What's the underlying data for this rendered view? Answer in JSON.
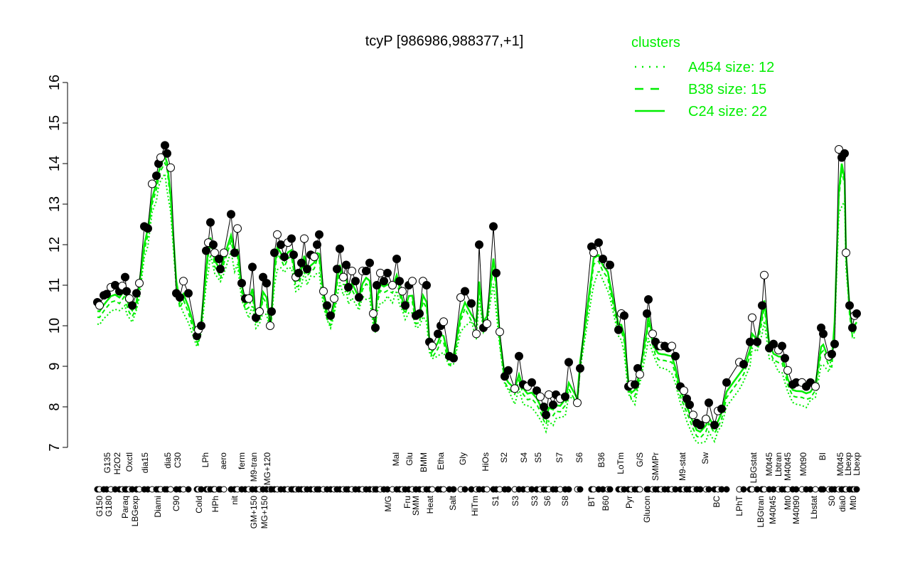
{
  "chart_data": {
    "type": "line",
    "title": "tcyP [986986,988377,+1]",
    "xlabel": "",
    "ylabel": "",
    "ylim": [
      7,
      16
    ],
    "xlim": [
      -3,
      1115
    ],
    "yticks": [
      7,
      8,
      9,
      10,
      11,
      12,
      13,
      14,
      15,
      16
    ],
    "colors": {
      "cluster": "#00ee00",
      "points": "#000000"
    },
    "legend": {
      "title": "clusters",
      "placement": "top-right",
      "entries": [
        {
          "label": "A454 size: 12",
          "style": "dotted"
        },
        {
          "label": "B38 size: 15",
          "style": "dashed"
        },
        {
          "label": "C24 size: 22",
          "style": "solid"
        }
      ]
    },
    "points": [
      [
        37,
        10.58
      ],
      [
        40,
        10.5
      ],
      [
        46,
        10.75
      ],
      [
        50,
        10.78
      ],
      [
        56,
        10.95
      ],
      [
        62,
        11.0
      ],
      [
        68,
        10.85
      ],
      [
        72,
        10.98
      ],
      [
        76,
        11.2
      ],
      [
        78,
        10.85
      ],
      [
        82,
        10.67
      ],
      [
        86,
        10.5
      ],
      [
        92,
        10.8
      ],
      [
        96,
        11.05
      ],
      [
        103,
        12.45
      ],
      [
        108,
        12.4
      ],
      [
        114,
        13.5
      ],
      [
        120,
        13.7
      ],
      [
        123,
        14.0
      ],
      [
        126,
        14.15
      ],
      [
        132,
        14.45
      ],
      [
        135,
        14.25
      ],
      [
        140,
        13.9
      ],
      [
        148,
        10.8
      ],
      [
        153,
        10.7
      ],
      [
        158,
        11.1
      ],
      [
        165,
        10.8
      ],
      [
        177,
        9.75
      ],
      [
        179,
        9.9
      ],
      [
        183,
        10.0
      ],
      [
        190,
        11.85
      ],
      [
        193,
        12.05
      ],
      [
        196,
        12.55
      ],
      [
        200,
        12.0
      ],
      [
        202,
        11.8
      ],
      [
        208,
        11.65
      ],
      [
        210,
        11.4
      ],
      [
        215,
        11.8
      ],
      [
        225,
        12.75
      ],
      [
        230,
        11.8
      ],
      [
        234,
        12.4
      ],
      [
        240,
        11.05
      ],
      [
        245,
        10.67
      ],
      [
        250,
        10.67
      ],
      [
        255,
        11.45
      ],
      [
        260,
        10.2
      ],
      [
        265,
        10.35
      ],
      [
        270,
        11.2
      ],
      [
        275,
        11.05
      ],
      [
        280,
        10.0
      ],
      [
        282,
        10.35
      ],
      [
        286,
        11.8
      ],
      [
        290,
        12.25
      ],
      [
        295,
        12.0
      ],
      [
        300,
        11.7
      ],
      [
        305,
        12.05
      ],
      [
        310,
        12.15
      ],
      [
        313,
        11.75
      ],
      [
        316,
        11.2
      ],
      [
        320,
        11.3
      ],
      [
        324,
        11.55
      ],
      [
        328,
        12.15
      ],
      [
        332,
        11.4
      ],
      [
        337,
        11.75
      ],
      [
        342,
        11.7
      ],
      [
        346,
        12.0
      ],
      [
        349,
        12.25
      ],
      [
        355,
        10.85
      ],
      [
        360,
        10.5
      ],
      [
        365,
        10.25
      ],
      [
        370,
        10.67
      ],
      [
        374,
        11.4
      ],
      [
        378,
        11.9
      ],
      [
        383,
        11.2
      ],
      [
        387,
        11.5
      ],
      [
        390,
        10.95
      ],
      [
        395,
        11.35
      ],
      [
        400,
        11.1
      ],
      [
        405,
        10.7
      ],
      [
        410,
        11.35
      ],
      [
        415,
        11.35
      ],
      [
        420,
        11.55
      ],
      [
        425,
        10.3
      ],
      [
        428,
        9.95
      ],
      [
        430,
        11.0
      ],
      [
        435,
        11.3
      ],
      [
        440,
        11.1
      ],
      [
        445,
        11.3
      ],
      [
        452,
        11.0
      ],
      [
        458,
        11.65
      ],
      [
        462,
        11.1
      ],
      [
        466,
        10.85
      ],
      [
        470,
        10.5
      ],
      [
        475,
        11.0
      ],
      [
        480,
        11.1
      ],
      [
        485,
        10.25
      ],
      [
        490,
        10.3
      ],
      [
        495,
        11.1
      ],
      [
        500,
        11.0
      ],
      [
        504,
        9.6
      ],
      [
        508,
        9.5
      ],
      [
        516,
        9.8
      ],
      [
        520,
        10.0
      ],
      [
        524,
        10.1
      ],
      [
        532,
        9.25
      ],
      [
        538,
        9.2
      ],
      [
        548,
        10.7
      ],
      [
        554,
        10.85
      ],
      [
        563,
        10.55
      ],
      [
        570,
        9.8
      ],
      [
        574,
        12.0
      ],
      [
        580,
        9.95
      ],
      [
        585,
        10.05
      ],
      [
        594,
        12.45
      ],
      [
        598,
        11.3
      ],
      [
        603,
        9.85
      ],
      [
        610,
        8.75
      ],
      [
        615,
        8.9
      ],
      [
        624,
        8.45
      ],
      [
        630,
        9.25
      ],
      [
        636,
        8.55
      ],
      [
        642,
        8.5
      ],
      [
        648,
        8.6
      ],
      [
        655,
        8.4
      ],
      [
        660,
        8.25
      ],
      [
        665,
        8.0
      ],
      [
        668,
        7.8
      ],
      [
        672,
        8.3
      ],
      [
        678,
        8.05
      ],
      [
        682,
        8.3
      ],
      [
        688,
        8.2
      ],
      [
        695,
        8.25
      ],
      [
        700,
        9.1
      ],
      [
        712,
        8.1
      ],
      [
        716,
        8.95
      ],
      [
        732,
        11.95
      ],
      [
        735,
        11.8
      ],
      [
        742,
        12.05
      ],
      [
        748,
        11.65
      ],
      [
        755,
        11.5
      ],
      [
        758,
        11.5
      ],
      [
        770,
        9.9
      ],
      [
        774,
        10.3
      ],
      [
        778,
        10.25
      ],
      [
        784,
        8.5
      ],
      [
        788,
        8.55
      ],
      [
        793,
        8.55
      ],
      [
        797,
        8.95
      ],
      [
        800,
        8.8
      ],
      [
        810,
        10.3
      ],
      [
        812,
        10.65
      ],
      [
        818,
        9.8
      ],
      [
        822,
        9.6
      ],
      [
        826,
        9.5
      ],
      [
        830,
        9.5
      ],
      [
        835,
        9.5
      ],
      [
        840,
        9.45
      ],
      [
        845,
        9.5
      ],
      [
        850,
        9.25
      ],
      [
        857,
        8.5
      ],
      [
        862,
        8.4
      ],
      [
        866,
        8.2
      ],
      [
        870,
        8.05
      ],
      [
        875,
        7.8
      ],
      [
        880,
        7.6
      ],
      [
        885,
        7.55
      ],
      [
        893,
        7.7
      ],
      [
        897,
        8.1
      ],
      [
        905,
        7.55
      ],
      [
        910,
        7.9
      ],
      [
        915,
        7.95
      ],
      [
        922,
        8.6
      ],
      [
        940,
        9.1
      ],
      [
        946,
        9.05
      ],
      [
        955,
        9.6
      ],
      [
        958,
        10.2
      ],
      [
        965,
        9.6
      ],
      [
        972,
        10.5
      ],
      [
        975,
        11.25
      ],
      [
        982,
        9.45
      ],
      [
        988,
        9.55
      ],
      [
        995,
        9.4
      ],
      [
        1000,
        9.5
      ],
      [
        1004,
        9.2
      ],
      [
        1008,
        8.9
      ],
      [
        1015,
        8.55
      ],
      [
        1020,
        8.6
      ],
      [
        1028,
        8.6
      ],
      [
        1034,
        8.5
      ],
      [
        1040,
        8.6
      ],
      [
        1047,
        8.5
      ],
      [
        1055,
        9.95
      ],
      [
        1058,
        9.8
      ],
      [
        1066,
        9.25
      ],
      [
        1070,
        9.3
      ],
      [
        1074,
        9.55
      ],
      [
        1080,
        14.35
      ],
      [
        1084,
        14.15
      ],
      [
        1088,
        14.25
      ],
      [
        1090,
        11.8
      ],
      [
        1095,
        10.5
      ],
      [
        1099,
        9.95
      ],
      [
        1102,
        10.25
      ],
      [
        1105,
        10.3
      ]
    ],
    "xlabels_lower": [
      [
        "G150",
        40
      ],
      [
        "G180",
        53
      ],
      [
        "Paraq",
        76
      ],
      [
        "LBGexp",
        90
      ],
      [
        "Diami",
        122
      ],
      [
        "C90",
        148
      ],
      [
        "Cold",
        180
      ],
      [
        "HPh",
        203
      ],
      [
        "nit",
        230
      ],
      [
        "GM+150",
        257
      ],
      [
        "MG+150",
        272
      ],
      [
        "M/G",
        446
      ],
      [
        "Fru",
        473
      ],
      [
        "SMM",
        485
      ],
      [
        "Heat",
        505
      ],
      [
        "Salt",
        537
      ],
      [
        "HiTm",
        568
      ],
      [
        "S1",
        597
      ],
      [
        "S3",
        625
      ],
      [
        "S3",
        652
      ],
      [
        "S6",
        670
      ],
      [
        "S8",
        695
      ],
      [
        "BT",
        732
      ],
      [
        "B60",
        752
      ],
      [
        "Pyr",
        785
      ],
      [
        "Glucon",
        810
      ],
      [
        "BC",
        908
      ],
      [
        "LPhT",
        940
      ],
      [
        "LBGtran",
        970
      ],
      [
        "M40t45",
        987
      ],
      [
        "Mt0",
        1008
      ],
      [
        "M40t90",
        1020
      ],
      [
        "Lbstat",
        1045
      ],
      [
        "S0",
        1070
      ],
      [
        "dia0",
        1085
      ],
      [
        "Mt0",
        1100
      ]
    ],
    "xlabels_upper": [
      [
        "G135",
        51
      ],
      [
        "H2O2",
        65
      ],
      [
        "Oxctl",
        82
      ],
      [
        "dia15",
        104
      ],
      [
        "dia5",
        136
      ],
      [
        "C30",
        150
      ],
      [
        "LPh",
        189
      ],
      [
        "aero",
        214
      ],
      [
        "ferm",
        240
      ],
      [
        "M9-tran",
        257
      ],
      [
        "MG+120",
        276
      ],
      [
        "Mal",
        457
      ],
      [
        "Glu",
        476
      ],
      [
        "BMM",
        496
      ],
      [
        "Etha",
        520
      ],
      [
        "Gly",
        551
      ],
      [
        "HiOs",
        583
      ],
      [
        "S2",
        609
      ],
      [
        "S4",
        637
      ],
      [
        "S5",
        657
      ],
      [
        "S7",
        687
      ],
      [
        "S6",
        715
      ],
      [
        "B36",
        746
      ],
      [
        "LoTm",
        773
      ],
      [
        "G/S",
        800
      ],
      [
        "SMMPr",
        822
      ],
      [
        "M9-stat",
        860
      ],
      [
        "Sw",
        892
      ],
      [
        "LBGstat",
        960
      ],
      [
        "M0t45",
        982
      ],
      [
        "Lbtran",
        995
      ],
      [
        "M40t45",
        1008
      ],
      [
        "M0t90",
        1030
      ],
      [
        "BI",
        1057
      ],
      [
        "M0t45",
        1082
      ],
      [
        "Lbexp",
        1093
      ],
      [
        "Lbexp",
        1105
      ]
    ]
  }
}
